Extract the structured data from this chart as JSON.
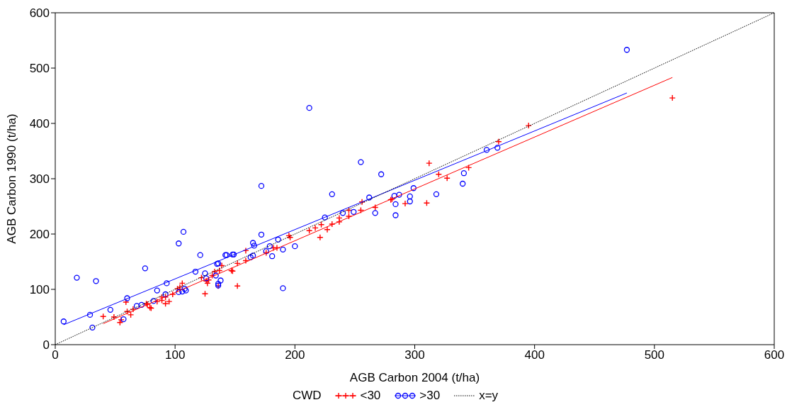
{
  "chart_data": {
    "type": "scatter",
    "xlabel": "AGB Carbon 2004 (t/ha)",
    "ylabel": "AGB Carbon 1990 (t/ha)",
    "legend_title": "CWD",
    "legend": "bottom",
    "grid": false,
    "xlim": [
      0,
      600
    ],
    "xticks": [
      0,
      100,
      200,
      300,
      400,
      500,
      600
    ],
    "ylim": [
      0,
      600
    ],
    "yticks": [
      0,
      100,
      200,
      300,
      400,
      500,
      600
    ],
    "series": [
      {
        "name": "<30",
        "type": "scatter",
        "marker": "cross",
        "color": "#ff0000",
        "x": [
          40,
          49,
          54,
          55,
          59,
          60,
          63,
          65,
          76,
          77,
          79,
          80,
          85,
          89,
          89,
          92,
          92,
          95,
          98,
          102,
          106,
          104,
          122,
          125,
          126,
          127,
          128,
          131,
          133,
          136,
          137,
          139,
          147,
          148,
          152,
          152,
          159,
          159,
          176,
          182,
          185,
          195,
          196,
          212,
          217,
          221,
          227,
          222,
          231,
          237,
          237,
          245,
          245,
          255,
          256,
          267,
          280,
          281,
          292,
          310,
          312,
          320,
          327,
          345,
          370,
          395,
          515
        ],
        "values": [
          51,
          50,
          40,
          45,
          77,
          60,
          54,
          64,
          74,
          73,
          67,
          66,
          78,
          86,
          80,
          86,
          74,
          78,
          91,
          101,
          111,
          104,
          121,
          92,
          115,
          111,
          117,
          125,
          132,
          106,
          134,
          143,
          134,
          133,
          106,
          147,
          170,
          152,
          166,
          175,
          175,
          197,
          194,
          206,
          211,
          194,
          208,
          217,
          218,
          222,
          229,
          232,
          243,
          243,
          258,
          248,
          262,
          263,
          255,
          256,
          328,
          308,
          301,
          320,
          367,
          396,
          446
        ]
      },
      {
        "name": ">30",
        "type": "scatter",
        "marker": "circle",
        "color": "#0000ff",
        "x": [
          7,
          18,
          34,
          29,
          31,
          46,
          60,
          75,
          57,
          68,
          72,
          82,
          85,
          93,
          92,
          103,
          103,
          106,
          108,
          109,
          107,
          121,
          117,
          125,
          126,
          134,
          135,
          136,
          138,
          142,
          148,
          136,
          143,
          149,
          136,
          163,
          165,
          165,
          166,
          172,
          172,
          176,
          179,
          181,
          186,
          190,
          190,
          200,
          212,
          225,
          231,
          240,
          249,
          255,
          262,
          267,
          272,
          283,
          284,
          284,
          287,
          296,
          296,
          299,
          318,
          340,
          341,
          360,
          369,
          477
        ],
        "values": [
          42,
          121,
          115,
          54,
          31,
          63,
          84,
          138,
          46,
          70,
          72,
          79,
          98,
          111,
          91,
          183,
          95,
          96,
          101,
          98,
          204,
          162,
          132,
          129,
          120,
          125,
          146,
          110,
          116,
          162,
          163,
          147,
          162,
          163,
          107,
          158,
          161,
          184,
          179,
          199,
          287,
          169,
          178,
          160,
          190,
          172,
          102,
          178,
          428,
          230,
          272,
          238,
          240,
          330,
          266,
          238,
          308,
          269,
          234,
          254,
          271,
          268,
          259,
          283,
          272,
          291,
          310,
          352,
          356,
          533
        ]
      },
      {
        "type": "line",
        "color": "#ff0000",
        "line_style": "solid",
        "x": [
          40,
          515
        ],
        "values": [
          38,
          483
        ]
      },
      {
        "type": "line",
        "color": "#0000ff",
        "line_style": "solid",
        "x": [
          7,
          477
        ],
        "values": [
          36,
          455
        ]
      },
      {
        "name": "x=y",
        "type": "line",
        "color": "#000000",
        "line_style": "dotted",
        "x": [
          0,
          600
        ],
        "values": [
          0,
          600
        ]
      }
    ]
  }
}
